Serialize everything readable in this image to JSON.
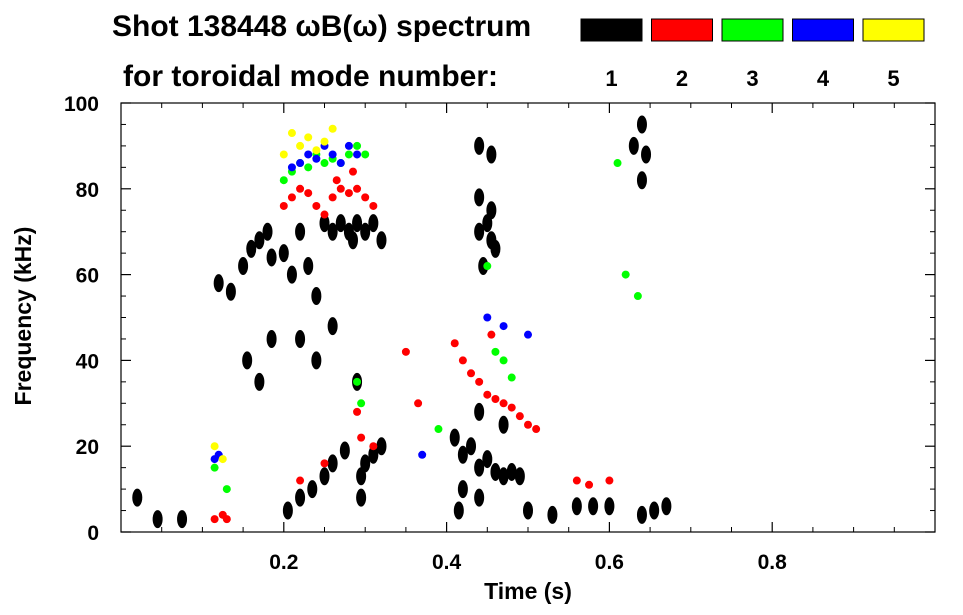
{
  "chart_data": {
    "type": "scatter",
    "title": "Shot 138448 ωB(ω) spectrum",
    "subtitle": "for toroidal mode number:",
    "xlabel": "Time (s)",
    "ylabel": "Frequency (kHz)",
    "xlim": [
      0.0,
      1.0
    ],
    "ylim": [
      0,
      100
    ],
    "xticks": [
      0.2,
      0.4,
      0.6,
      0.8
    ],
    "xtick_labels": [
      "0.2",
      "0.4",
      "0.6",
      "0.8"
    ],
    "yticks": [
      0,
      20,
      40,
      60,
      80,
      100
    ],
    "ytick_labels": [
      "0",
      "20",
      "40",
      "60",
      "80",
      "100"
    ],
    "legend": [
      {
        "label": "1",
        "color": "#000000"
      },
      {
        "label": "2",
        "color": "#ff0000"
      },
      {
        "label": "3",
        "color": "#00ff00"
      },
      {
        "label": "4",
        "color": "#0000ff"
      },
      {
        "label": "5",
        "color": "#ffff00"
      }
    ],
    "series": [
      {
        "name": "n=1",
        "color": "#000000",
        "points": [
          [
            0.12,
            58
          ],
          [
            0.135,
            56
          ],
          [
            0.15,
            62
          ],
          [
            0.16,
            66
          ],
          [
            0.17,
            68
          ],
          [
            0.18,
            70
          ],
          [
            0.185,
            64
          ],
          [
            0.155,
            40
          ],
          [
            0.17,
            35
          ],
          [
            0.185,
            45
          ],
          [
            0.2,
            65
          ],
          [
            0.21,
            60
          ],
          [
            0.22,
            70
          ],
          [
            0.23,
            62
          ],
          [
            0.24,
            55
          ],
          [
            0.25,
            72
          ],
          [
            0.26,
            70
          ],
          [
            0.27,
            72
          ],
          [
            0.28,
            70
          ],
          [
            0.285,
            68
          ],
          [
            0.29,
            72
          ],
          [
            0.3,
            70
          ],
          [
            0.31,
            72
          ],
          [
            0.32,
            68
          ],
          [
            0.22,
            45
          ],
          [
            0.24,
            40
          ],
          [
            0.26,
            48
          ],
          [
            0.29,
            35
          ],
          [
            0.205,
            5
          ],
          [
            0.22,
            8
          ],
          [
            0.235,
            10
          ],
          [
            0.25,
            13
          ],
          [
            0.26,
            16
          ],
          [
            0.275,
            19
          ],
          [
            0.295,
            13
          ],
          [
            0.3,
            16
          ],
          [
            0.31,
            18
          ],
          [
            0.32,
            20
          ],
          [
            0.295,
            8
          ],
          [
            0.41,
            22
          ],
          [
            0.42,
            18
          ],
          [
            0.43,
            20
          ],
          [
            0.44,
            15
          ],
          [
            0.45,
            17
          ],
          [
            0.46,
            14
          ],
          [
            0.47,
            13
          ],
          [
            0.48,
            14
          ],
          [
            0.49,
            13
          ],
          [
            0.42,
            10
          ],
          [
            0.44,
            8
          ],
          [
            0.415,
            5
          ],
          [
            0.44,
            28
          ],
          [
            0.47,
            25
          ],
          [
            0.44,
            70
          ],
          [
            0.45,
            72
          ],
          [
            0.455,
            68
          ],
          [
            0.46,
            66
          ],
          [
            0.445,
            62
          ],
          [
            0.44,
            78
          ],
          [
            0.455,
            75
          ],
          [
            0.44,
            90
          ],
          [
            0.455,
            88
          ],
          [
            0.045,
            3
          ],
          [
            0.075,
            3
          ],
          [
            0.02,
            8
          ],
          [
            0.5,
            5
          ],
          [
            0.53,
            4
          ],
          [
            0.56,
            6
          ],
          [
            0.58,
            6
          ],
          [
            0.6,
            6
          ],
          [
            0.64,
            4
          ],
          [
            0.655,
            5
          ],
          [
            0.67,
            6
          ],
          [
            0.63,
            90
          ],
          [
            0.64,
            95
          ],
          [
            0.645,
            88
          ],
          [
            0.64,
            82
          ]
        ]
      },
      {
        "name": "n=2",
        "color": "#ff0000",
        "points": [
          [
            0.2,
            76
          ],
          [
            0.21,
            78
          ],
          [
            0.22,
            80
          ],
          [
            0.23,
            79
          ],
          [
            0.24,
            76
          ],
          [
            0.25,
            74
          ],
          [
            0.26,
            78
          ],
          [
            0.27,
            80
          ],
          [
            0.28,
            79
          ],
          [
            0.29,
            80
          ],
          [
            0.3,
            78
          ],
          [
            0.31,
            76
          ],
          [
            0.265,
            82
          ],
          [
            0.285,
            84
          ],
          [
            0.41,
            44
          ],
          [
            0.42,
            40
          ],
          [
            0.43,
            37
          ],
          [
            0.44,
            35
          ],
          [
            0.45,
            32
          ],
          [
            0.46,
            31
          ],
          [
            0.47,
            30
          ],
          [
            0.48,
            29
          ],
          [
            0.49,
            27
          ],
          [
            0.5,
            25
          ],
          [
            0.51,
            24
          ],
          [
            0.115,
            3
          ],
          [
            0.125,
            4
          ],
          [
            0.13,
            3
          ],
          [
            0.29,
            28
          ],
          [
            0.295,
            22
          ],
          [
            0.35,
            42
          ],
          [
            0.365,
            30
          ],
          [
            0.22,
            12
          ],
          [
            0.25,
            16
          ],
          [
            0.31,
            20
          ],
          [
            0.455,
            46
          ],
          [
            0.56,
            12
          ],
          [
            0.575,
            11
          ],
          [
            0.6,
            12
          ]
        ]
      },
      {
        "name": "n=3",
        "color": "#00ff00",
        "points": [
          [
            0.2,
            82
          ],
          [
            0.21,
            84
          ],
          [
            0.22,
            86
          ],
          [
            0.23,
            85
          ],
          [
            0.24,
            88
          ],
          [
            0.25,
            86
          ],
          [
            0.26,
            87
          ],
          [
            0.27,
            86
          ],
          [
            0.28,
            88
          ],
          [
            0.29,
            90
          ],
          [
            0.3,
            88
          ],
          [
            0.115,
            15
          ],
          [
            0.13,
            10
          ],
          [
            0.29,
            35
          ],
          [
            0.295,
            30
          ],
          [
            0.39,
            24
          ],
          [
            0.46,
            42
          ],
          [
            0.47,
            40
          ],
          [
            0.48,
            36
          ],
          [
            0.45,
            62
          ],
          [
            0.62,
            60
          ],
          [
            0.61,
            86
          ],
          [
            0.635,
            55
          ]
        ]
      },
      {
        "name": "n=4",
        "color": "#0000ff",
        "points": [
          [
            0.21,
            85
          ],
          [
            0.22,
            86
          ],
          [
            0.23,
            88
          ],
          [
            0.24,
            87
          ],
          [
            0.25,
            90
          ],
          [
            0.26,
            88
          ],
          [
            0.27,
            86
          ],
          [
            0.28,
            90
          ],
          [
            0.29,
            88
          ],
          [
            0.115,
            17
          ],
          [
            0.12,
            18
          ],
          [
            0.45,
            50
          ],
          [
            0.47,
            48
          ],
          [
            0.5,
            46
          ],
          [
            0.37,
            18
          ]
        ]
      },
      {
        "name": "n=5",
        "color": "#ffff00",
        "points": [
          [
            0.21,
            93
          ],
          [
            0.22,
            90
          ],
          [
            0.23,
            92
          ],
          [
            0.24,
            89
          ],
          [
            0.25,
            91
          ],
          [
            0.26,
            94
          ],
          [
            0.115,
            20
          ],
          [
            0.125,
            17
          ],
          [
            0.2,
            88
          ]
        ]
      }
    ]
  }
}
